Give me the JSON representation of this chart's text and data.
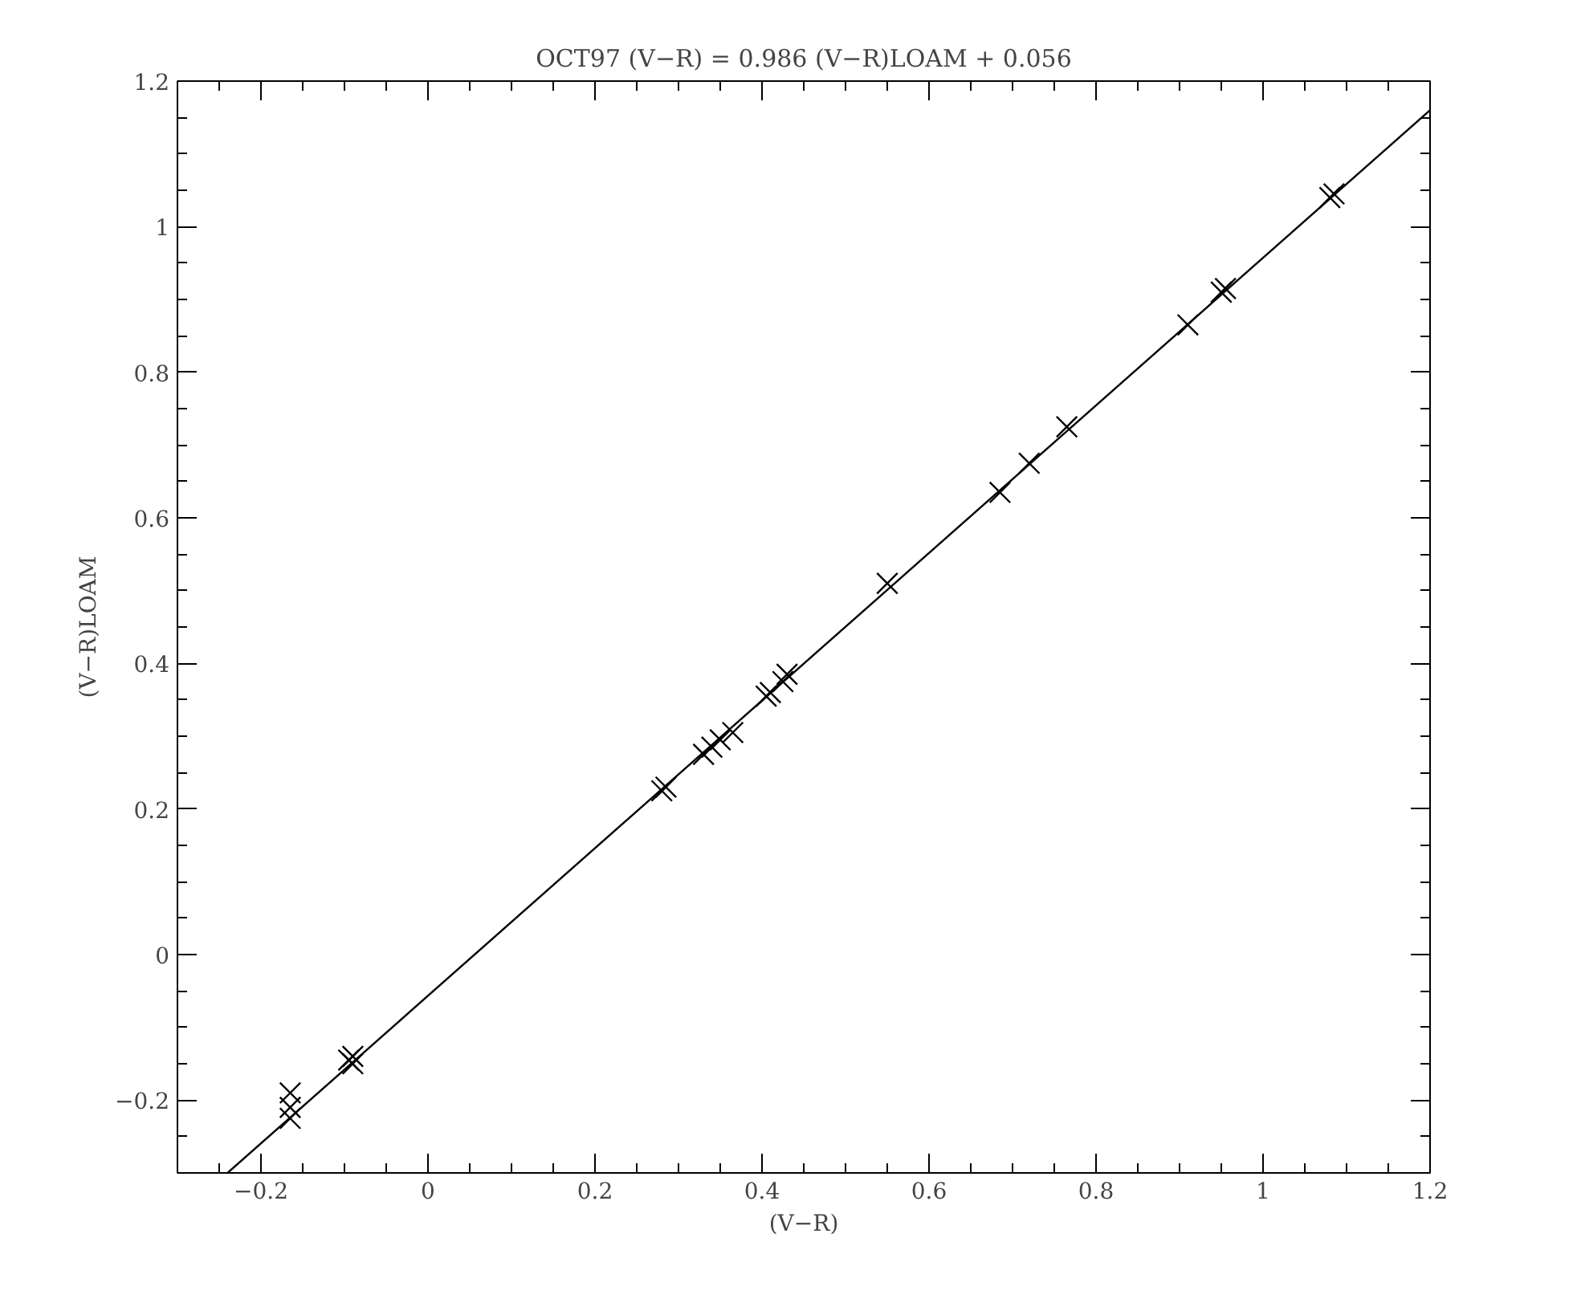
{
  "chart_data": {
    "type": "scatter",
    "title": "OCT97 (V−R) = 0.986 (V−R)LOAM + 0.056",
    "xlabel": "(V−R)",
    "ylabel": "(V−R)LOAM",
    "xlim": [
      -0.3,
      1.2
    ],
    "ylim": [
      -0.3,
      1.2
    ],
    "xticks": [
      {
        "value": -0.2,
        "label": "−0.2"
      },
      0,
      0.2,
      0.4,
      0.6,
      0.8,
      1,
      1.2
    ],
    "yticks": [
      {
        "value": -0.2,
        "label": "−0.2"
      },
      0,
      0.2,
      0.4,
      0.6,
      0.8,
      1,
      1.2
    ],
    "grid": false,
    "series": [
      {
        "color": "#000000",
        "marker": "cross",
        "x": [
          -0.165,
          -0.165,
          -0.165,
          -0.09,
          -0.09,
          -0.095,
          0.28,
          0.285,
          0.33,
          0.34,
          0.35,
          0.365,
          0.405,
          0.41,
          0.425,
          0.43,
          0.55,
          0.685,
          0.72,
          0.765,
          0.91,
          0.95,
          0.955,
          1.08,
          1.085
        ],
        "values": [
          -0.19,
          -0.21,
          -0.225,
          -0.14,
          -0.15,
          -0.145,
          0.225,
          0.23,
          0.275,
          0.285,
          0.295,
          0.305,
          0.355,
          0.36,
          0.375,
          0.385,
          0.51,
          0.635,
          0.675,
          0.725,
          0.865,
          0.91,
          0.915,
          1.04,
          1.045
        ]
      },
      {
        "type": "line",
        "color": "#000000",
        "x": [
          -0.24,
          1.2
        ],
        "values": [
          -0.3,
          1.16
        ]
      }
    ]
  }
}
